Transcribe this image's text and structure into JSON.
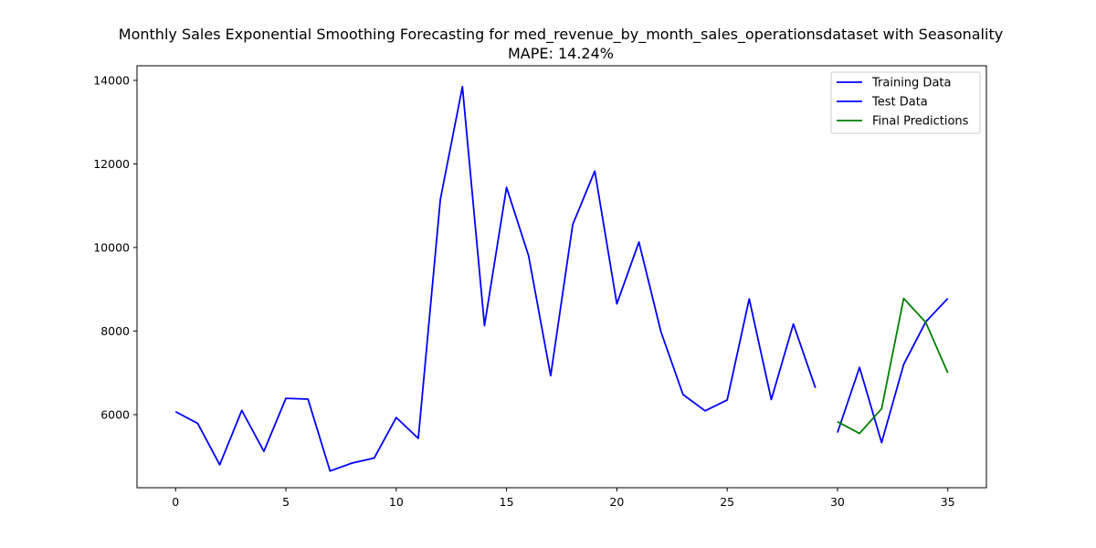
{
  "chart_data": {
    "type": "line",
    "title": "Monthly Sales Exponential Smoothing Forecasting for med_revenue_by_month_sales_operationsdataset with Seasonality",
    "subtitle": "MAPE: 14.24%",
    "xlabel": "",
    "ylabel": "",
    "xlim": [
      -1.75,
      36.75
    ],
    "ylim": [
      4250,
      14350
    ],
    "xticks": [
      0,
      5,
      10,
      15,
      20,
      25,
      30,
      35
    ],
    "yticks": [
      6000,
      8000,
      10000,
      12000,
      14000
    ],
    "grid": false,
    "legend_position": "top-right",
    "series": [
      {
        "name": "Training Data",
        "color": "#0000ff",
        "x": [
          0,
          1,
          2,
          3,
          4,
          5,
          6,
          7,
          8,
          9,
          10,
          11,
          12,
          13,
          14,
          15,
          16,
          17,
          18,
          19,
          20,
          21,
          22,
          23,
          24,
          25,
          26,
          27,
          28,
          29
        ],
        "y": [
          6070,
          5790,
          4800,
          6100,
          5120,
          6390,
          6370,
          4650,
          4840,
          4960,
          5930,
          5430,
          11150,
          13850,
          8130,
          11440,
          9800,
          6930,
          10550,
          11830,
          8650,
          10130,
          7980,
          6480,
          6090,
          6350,
          8770,
          6360,
          8170,
          6640
        ]
      },
      {
        "name": "Test Data",
        "color": "#0000ff",
        "x": [
          30,
          31,
          32,
          33,
          34,
          35
        ],
        "y": [
          5570,
          7130,
          5330,
          7200,
          8220,
          8780
        ]
      },
      {
        "name": "Final Predictions",
        "color": "#008000",
        "x": [
          30,
          31,
          32,
          33,
          34,
          35
        ],
        "y": [
          5830,
          5550,
          6140,
          8780,
          8210,
          7000
        ]
      }
    ]
  }
}
